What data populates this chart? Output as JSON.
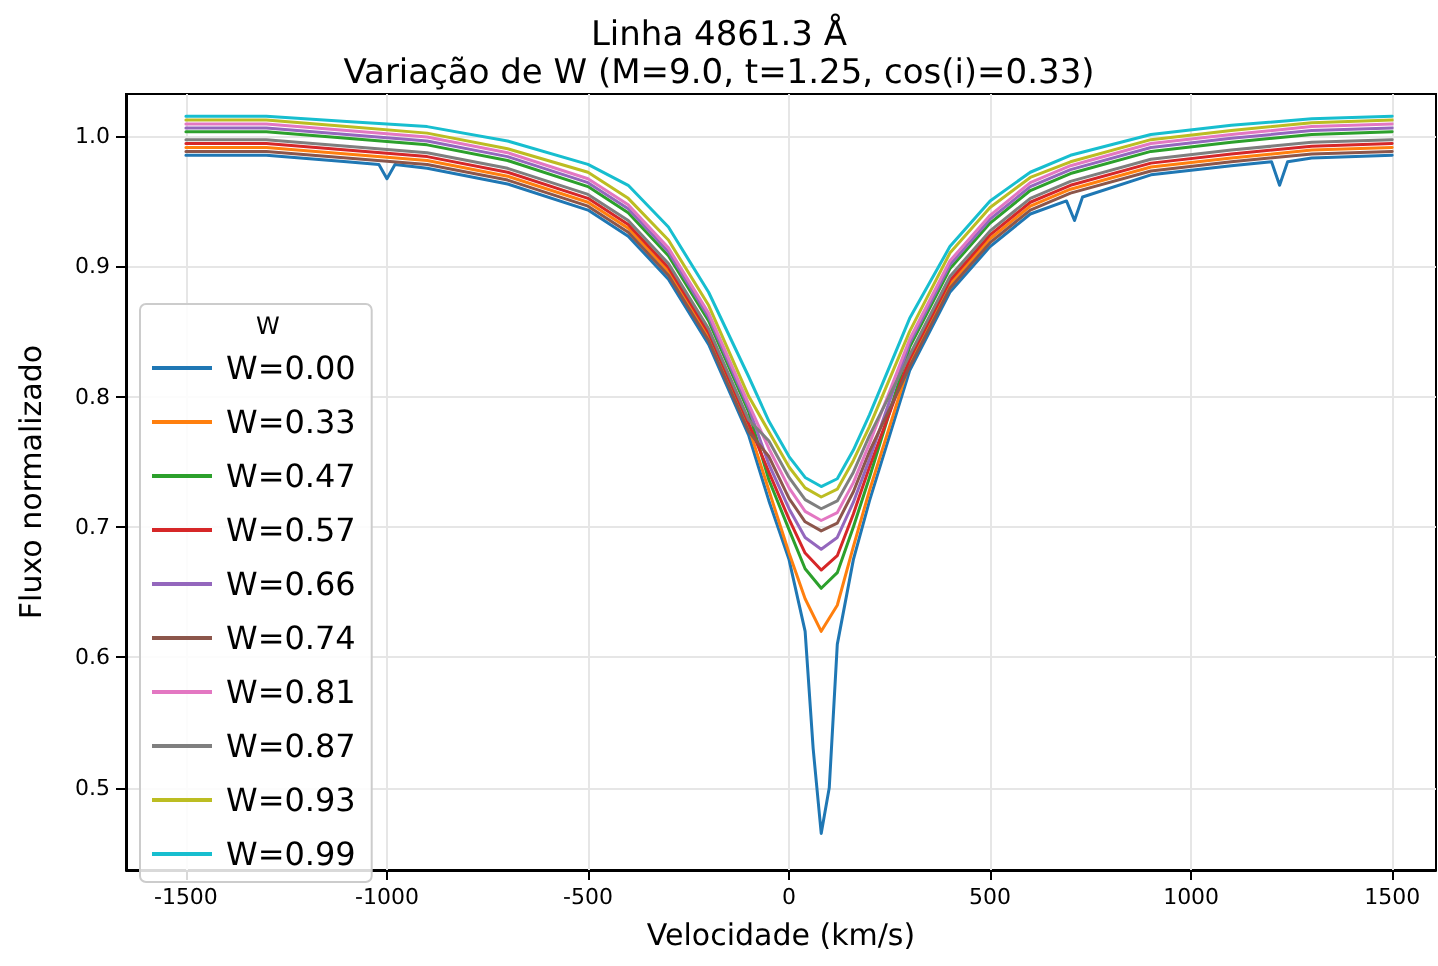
{
  "chart_data": {
    "type": "line",
    "title": "Linha 4861.3 Å",
    "subtitle": "Variação de W (M=9.0, t=1.25, cos(i)=0.33)",
    "xlabel": "Velocidade (km/s)",
    "ylabel": "Fluxo normalizado",
    "legend_title": "W",
    "legend": "left",
    "grid": true,
    "marker": "none",
    "line_style": "solid",
    "xlim": [
      -1649,
      1609
    ],
    "xticks": [
      -1500,
      -1000,
      -500,
      0,
      500,
      1000,
      1500
    ],
    "ylim": [
      0.437,
      1.032
    ],
    "yticks": [
      0.5,
      0.6,
      0.7,
      0.8,
      0.9,
      {
        "value": 1.0,
        "label": "1.0"
      }
    ],
    "x": [
      -1500,
      -1300,
      -1100,
      -900,
      -700,
      -500,
      -400,
      -300,
      -200,
      -100,
      -50,
      0,
      40,
      80,
      120,
      160,
      200,
      300,
      400,
      500,
      600,
      700,
      900,
      1100,
      1300,
      1500
    ],
    "series": [
      {
        "name": "W=0.00",
        "color": "#1f77b4",
        "x": [
          -1500,
          -1300,
          -1100,
          -1020,
          -1000,
          -980,
          -900,
          -700,
          -500,
          -400,
          -300,
          -200,
          -100,
          -50,
          0,
          40,
          60,
          80,
          100,
          120,
          160,
          200,
          300,
          400,
          500,
          600,
          690,
          710,
          730,
          900,
          1100,
          1200,
          1220,
          1240,
          1300,
          1500
        ],
        "values": [
          0.985,
          0.985,
          0.98,
          0.978,
          0.967,
          0.978,
          0.975,
          0.963,
          0.943,
          0.923,
          0.89,
          0.84,
          0.77,
          0.72,
          0.675,
          0.62,
          0.53,
          0.465,
          0.5,
          0.61,
          0.675,
          0.72,
          0.82,
          0.88,
          0.915,
          0.94,
          0.95,
          0.935,
          0.953,
          0.97,
          0.977,
          0.98,
          0.962,
          0.98,
          0.983,
          0.985
        ]
      },
      {
        "name": "W=0.33",
        "color": "#ff7f0e",
        "values": [
          0.991,
          0.991,
          0.986,
          0.981,
          0.969,
          0.949,
          0.929,
          0.896,
          0.846,
          0.776,
          0.728,
          0.68,
          0.645,
          0.62,
          0.64,
          0.685,
          0.728,
          0.826,
          0.886,
          0.921,
          0.946,
          0.959,
          0.976,
          0.983,
          0.989,
          0.991
        ]
      },
      {
        "name": "W=0.47",
        "color": "#2ca02c",
        "values": [
          1.003,
          1.003,
          0.998,
          0.993,
          0.981,
          0.961,
          0.941,
          0.908,
          0.858,
          0.788,
          0.736,
          0.698,
          0.668,
          0.653,
          0.665,
          0.7,
          0.738,
          0.838,
          0.898,
          0.933,
          0.958,
          0.971,
          0.988,
          0.995,
          1.001,
          1.003
        ]
      },
      {
        "name": "W=0.57",
        "color": "#d62728",
        "values": [
          0.994,
          0.994,
          0.989,
          0.984,
          0.972,
          0.952,
          0.932,
          0.899,
          0.849,
          0.779,
          0.742,
          0.706,
          0.68,
          0.667,
          0.678,
          0.71,
          0.746,
          0.829,
          0.889,
          0.924,
          0.949,
          0.962,
          0.979,
          0.986,
          0.992,
          0.994
        ]
      },
      {
        "name": "W=0.66",
        "color": "#9467bd",
        "values": [
          1.006,
          1.006,
          1.001,
          0.996,
          0.984,
          0.964,
          0.944,
          0.911,
          0.861,
          0.791,
          0.748,
          0.714,
          0.692,
          0.683,
          0.692,
          0.719,
          0.752,
          0.841,
          0.901,
          0.936,
          0.961,
          0.974,
          0.991,
          0.998,
          1.004,
          1.006
        ]
      },
      {
        "name": "W=0.74",
        "color": "#8c564b",
        "values": [
          0.988,
          0.988,
          0.983,
          0.978,
          0.966,
          0.946,
          0.926,
          0.893,
          0.843,
          0.773,
          0.754,
          0.722,
          0.704,
          0.697,
          0.703,
          0.727,
          0.758,
          0.823,
          0.883,
          0.918,
          0.943,
          0.956,
          0.973,
          0.98,
          0.986,
          0.988
        ]
      },
      {
        "name": "W=0.81",
        "color": "#e377c2",
        "values": [
          1.009,
          1.009,
          1.004,
          0.999,
          0.987,
          0.967,
          0.947,
          0.914,
          0.864,
          0.794,
          0.76,
          0.73,
          0.712,
          0.705,
          0.711,
          0.734,
          0.764,
          0.844,
          0.904,
          0.939,
          0.964,
          0.977,
          0.994,
          1.001,
          1.007,
          1.009
        ]
      },
      {
        "name": "W=0.87",
        "color": "#7f7f7f",
        "values": [
          0.997,
          0.997,
          0.992,
          0.987,
          0.975,
          0.955,
          0.935,
          0.902,
          0.852,
          0.782,
          0.766,
          0.738,
          0.721,
          0.714,
          0.72,
          0.742,
          0.77,
          0.832,
          0.892,
          0.927,
          0.952,
          0.965,
          0.982,
          0.989,
          0.995,
          0.997
        ]
      },
      {
        "name": "W=0.93",
        "color": "#bcbd22",
        "values": [
          1.012,
          1.012,
          1.007,
          1.002,
          0.99,
          0.972,
          0.952,
          0.92,
          0.87,
          0.8,
          0.773,
          0.746,
          0.73,
          0.723,
          0.729,
          0.751,
          0.777,
          0.85,
          0.91,
          0.945,
          0.968,
          0.98,
          0.997,
          1.004,
          1.01,
          1.012
        ]
      },
      {
        "name": "W=0.99",
        "color": "#17becf",
        "values": [
          1.015,
          1.015,
          1.011,
          1.007,
          0.996,
          0.978,
          0.962,
          0.93,
          0.88,
          0.815,
          0.781,
          0.754,
          0.738,
          0.731,
          0.737,
          0.759,
          0.786,
          0.86,
          0.915,
          0.95,
          0.972,
          0.985,
          1.001,
          1.008,
          1.013,
          1.015
        ]
      }
    ]
  }
}
